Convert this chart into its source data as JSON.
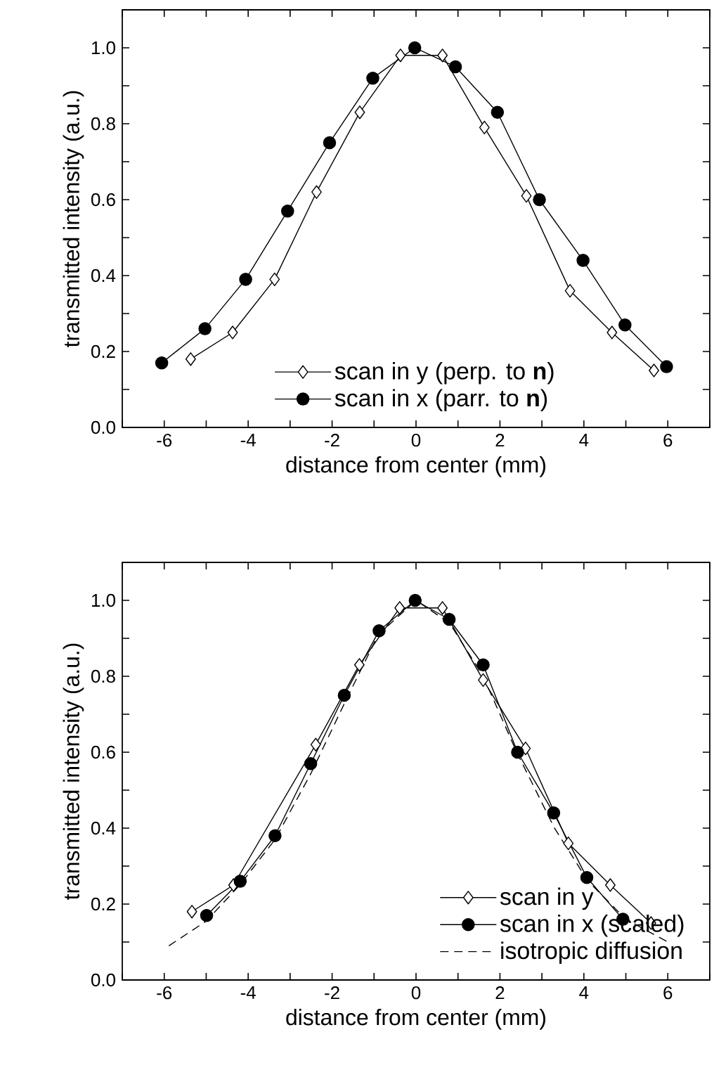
{
  "chart_data": [
    {
      "type": "line",
      "xlabel": "distance from center (mm)",
      "ylabel": "transmitted intensity (a.u.)",
      "xlim": [
        -7,
        7
      ],
      "ylim": [
        0,
        1.1
      ],
      "xticks": [
        {
          "value": -7,
          "label": null
        },
        -6,
        {
          "value": -5,
          "label": null
        },
        -4,
        {
          "value": -3,
          "label": null
        },
        -2,
        {
          "value": -1,
          "label": null
        },
        0,
        {
          "value": 1,
          "label": null
        },
        2,
        {
          "value": 3,
          "label": null
        },
        4,
        {
          "value": 5,
          "label": null
        },
        6,
        {
          "value": 7,
          "label": null
        }
      ],
      "yticks": [
        {
          "value": 0,
          "label": "0.0"
        },
        {
          "value": 0.1,
          "label": null
        },
        {
          "value": 0.2,
          "label": "0.2"
        },
        {
          "value": 0.3,
          "label": null
        },
        {
          "value": 0.4,
          "label": "0.4"
        },
        {
          "value": 0.5,
          "label": null
        },
        {
          "value": 0.6,
          "label": "0.6"
        },
        {
          "value": 0.7,
          "label": null
        },
        {
          "value": 0.8,
          "label": "0.8"
        },
        {
          "value": 0.9,
          "label": null
        },
        {
          "value": 1.0,
          "label": "1.0"
        }
      ],
      "legend": "bottom",
      "series": [
        {
          "name": "scan in y (perp. to **n**)",
          "color": "#000000",
          "marker": "diamond",
          "x": [
            -5.37,
            -4.37,
            -3.37,
            -2.37,
            -1.34,
            -0.37,
            0.63,
            1.63,
            2.63,
            3.67,
            4.67,
            5.67
          ],
          "values": [
            0.18,
            0.25,
            0.39,
            0.62,
            0.83,
            0.98,
            0.98,
            0.79,
            0.61,
            0.36,
            0.25,
            0.15
          ]
        },
        {
          "name": "scan in x (parr. to **n**)",
          "color": "#000000",
          "marker": "circle",
          "x": [
            -6.06,
            -5.03,
            -4.06,
            -3.06,
            -2.06,
            -1.03,
            -0.03,
            0.94,
            1.94,
            2.94,
            3.98,
            4.98,
            5.97
          ],
          "values": [
            0.17,
            0.26,
            0.39,
            0.57,
            0.75,
            0.92,
            1.0,
            0.95,
            0.83,
            0.6,
            0.44,
            0.27,
            0.16
          ]
        }
      ]
    },
    {
      "type": "line",
      "xlabel": "distance from center (mm)",
      "ylabel": "transmitted intensity (a.u.)",
      "xlim": [
        -7,
        7
      ],
      "ylim": [
        0,
        1.1
      ],
      "xticks": [
        {
          "value": -7,
          "label": null
        },
        -6,
        {
          "value": -5,
          "label": null
        },
        -4,
        {
          "value": -3,
          "label": null
        },
        -2,
        {
          "value": -1,
          "label": null
        },
        0,
        {
          "value": 1,
          "label": null
        },
        2,
        {
          "value": 3,
          "label": null
        },
        4,
        {
          "value": 5,
          "label": null
        },
        6,
        {
          "value": 7,
          "label": null
        }
      ],
      "yticks": [
        {
          "value": 0,
          "label": "0.0"
        },
        {
          "value": 0.1,
          "label": null
        },
        {
          "value": 0.2,
          "label": "0.2"
        },
        {
          "value": 0.3,
          "label": null
        },
        {
          "value": 0.4,
          "label": "0.4"
        },
        {
          "value": 0.5,
          "label": null
        },
        {
          "value": 0.6,
          "label": "0.6"
        },
        {
          "value": 0.7,
          "label": null
        },
        {
          "value": 0.8,
          "label": "0.8"
        },
        {
          "value": 0.9,
          "label": null
        },
        {
          "value": 1.0,
          "label": "1.0"
        }
      ],
      "legend": "bottom right",
      "series": [
        {
          "name": "scan in y",
          "color": "#000000",
          "marker": "diamond",
          "x": [
            -5.34,
            -4.35,
            -3.36,
            -2.39,
            -1.35,
            -0.39,
            0.63,
            1.6,
            2.61,
            3.63,
            4.63,
            5.6
          ],
          "values": [
            0.18,
            0.25,
            null,
            0.62,
            0.83,
            0.98,
            0.98,
            0.79,
            0.61,
            0.36,
            0.25,
            0.15
          ]
        },
        {
          "name": "scan in x (scaled)",
          "color": "#000000",
          "marker": "circle",
          "x": [
            -4.99,
            -4.19,
            -3.36,
            -2.51,
            -1.71,
            -0.88,
            -0.02,
            0.79,
            1.6,
            2.42,
            3.28,
            4.07,
            4.93
          ],
          "values": [
            0.17,
            0.26,
            0.38,
            0.57,
            0.75,
            0.92,
            1.0,
            0.95,
            0.83,
            0.6,
            0.44,
            0.27,
            0.16
          ]
        },
        {
          "name": "isotropic diffusion",
          "color": "#000000",
          "marker": "none",
          "line_style": "dashed",
          "x": [
            -5.89,
            -5.0,
            -4.2,
            -3.36,
            -2.5,
            -1.7,
            -0.9,
            0.0,
            0.8,
            1.6,
            2.4,
            3.3,
            4.1,
            5.0,
            6.0
          ],
          "values": [
            0.09,
            0.155,
            0.25,
            0.37,
            0.545,
            0.73,
            0.91,
            1.0,
            0.94,
            0.8,
            0.6,
            0.4,
            0.26,
            0.16,
            0.1
          ]
        }
      ]
    }
  ]
}
